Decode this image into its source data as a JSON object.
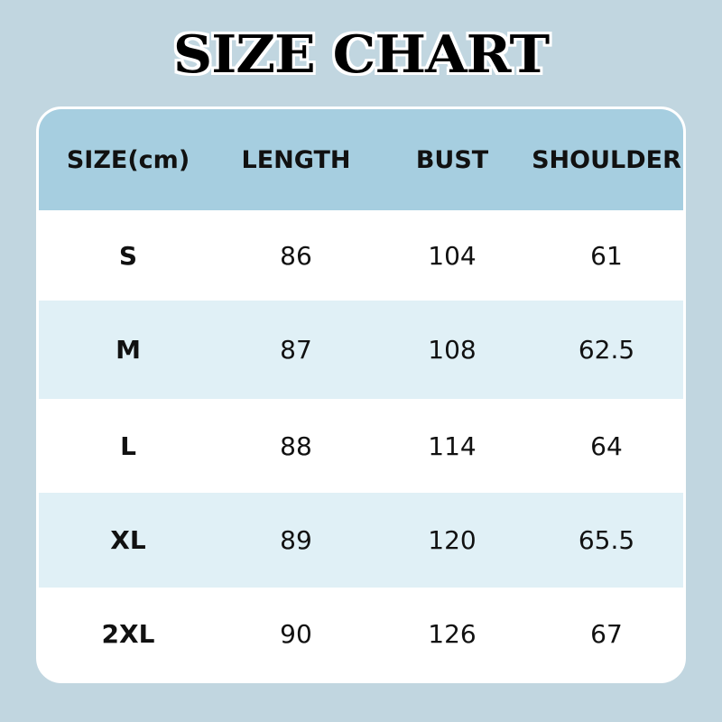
{
  "title": "SIZE CHART",
  "colors": {
    "background": "#c1d6e0",
    "header": "#a6cee0",
    "row_alt": "#e0f0f6"
  },
  "table": {
    "headers": [
      "SIZE(cm)",
      "LENGTH",
      "BUST",
      "SHOULDER"
    ],
    "rows": [
      [
        "S",
        "86",
        "104",
        "61"
      ],
      [
        "M",
        "87",
        "108",
        "62.5"
      ],
      [
        "L",
        "88",
        "114",
        "64"
      ],
      [
        "XL",
        "89",
        "120",
        "65.5"
      ],
      [
        "2XL",
        "90",
        "126",
        "67"
      ]
    ]
  }
}
